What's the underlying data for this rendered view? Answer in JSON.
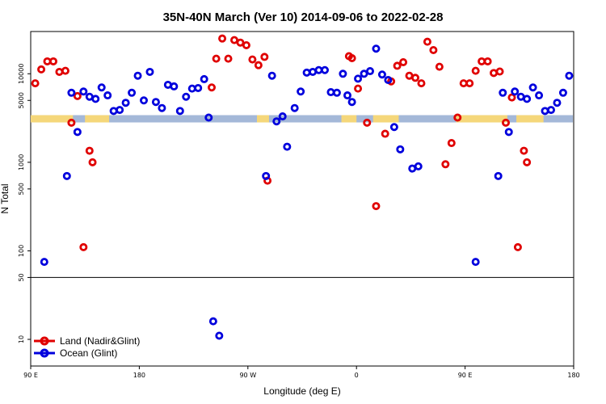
{
  "chart_data": {
    "type": "scatter",
    "title": "35N-40N March (Ver 10)   2014-09-06 to 2022-02-28",
    "xlabel": "Longitude (deg E)",
    "ylabel": "N Total",
    "yscale": "log",
    "ylim": [
      5,
      30000
    ],
    "xlim": [
      0,
      360
    ],
    "x_ticks": [
      {
        "x": 0,
        "label": "90 E"
      },
      {
        "x": 72,
        "label": "180"
      },
      {
        "x": 144,
        "label": "90 W"
      },
      {
        "x": 216,
        "label": "0"
      },
      {
        "x": 288,
        "label": "90 E"
      },
      {
        "x": 360,
        "label": "180"
      }
    ],
    "y_ticks": [
      {
        "v": 10,
        "label": "10"
      },
      {
        "v": 50,
        "label": "50"
      },
      {
        "v": 100,
        "label": "100"
      },
      {
        "v": 500,
        "label": "500"
      },
      {
        "v": 1000,
        "label": "1000"
      },
      {
        "v": 5000,
        "label": "5000"
      },
      {
        "v": 10000,
        "label": "10000"
      }
    ],
    "split_line": 50,
    "legend_position": "bottom-left",
    "colors": {
      "land": "#e00000",
      "ocean": "#0000dd",
      "map_land": "#f5d77a",
      "map_ocean": "#a4b8d8"
    },
    "series": [
      {
        "name": "Land (Nadir&Glint)",
        "color": "#e00000",
        "points": [
          [
            3,
            7800
          ],
          [
            7,
            11200
          ],
          [
            11,
            13800
          ],
          [
            15,
            13800
          ],
          [
            19,
            10500
          ],
          [
            23,
            10800
          ],
          [
            27,
            2800
          ],
          [
            31,
            5600
          ],
          [
            35,
            110
          ],
          [
            39,
            1350
          ],
          [
            41,
            1000
          ],
          [
            120,
            7000
          ],
          [
            123,
            14800
          ],
          [
            127,
            25000
          ],
          [
            131,
            14800
          ],
          [
            135,
            24000
          ],
          [
            139,
            22500
          ],
          [
            143,
            21000
          ],
          [
            147,
            14500
          ],
          [
            151,
            12500
          ],
          [
            155,
            15500
          ],
          [
            157,
            620
          ],
          [
            211,
            15800
          ],
          [
            213,
            15000
          ],
          [
            217,
            6800
          ],
          [
            223,
            2800
          ],
          [
            229,
            320
          ],
          [
            235,
            2100
          ],
          [
            239,
            8200
          ],
          [
            243,
            12300
          ],
          [
            247,
            13500
          ],
          [
            251,
            9500
          ],
          [
            255,
            9000
          ],
          [
            259,
            7800
          ],
          [
            263,
            23000
          ],
          [
            267,
            18500
          ],
          [
            271,
            12000
          ],
          [
            275,
            950
          ],
          [
            279,
            1650
          ],
          [
            283,
            3200
          ],
          [
            287,
            7800
          ],
          [
            291,
            7800
          ],
          [
            295,
            10800
          ],
          [
            299,
            13800
          ],
          [
            303,
            13800
          ],
          [
            307,
            10200
          ],
          [
            311,
            10600
          ],
          [
            315,
            2800
          ],
          [
            319,
            5400
          ],
          [
            323,
            110
          ],
          [
            327,
            1350
          ],
          [
            329,
            1000
          ]
        ]
      },
      {
        "name": "Ocean (Glint)",
        "color": "#0000dd",
        "points": [
          [
            9,
            75
          ],
          [
            24,
            700
          ],
          [
            27,
            6100
          ],
          [
            31,
            2200
          ],
          [
            35,
            6300
          ],
          [
            39,
            5500
          ],
          [
            43,
            5200
          ],
          [
            47,
            7000
          ],
          [
            51,
            5700
          ],
          [
            55,
            3800
          ],
          [
            59,
            3900
          ],
          [
            63,
            4700
          ],
          [
            67,
            6100
          ],
          [
            71,
            9500
          ],
          [
            75,
            5000
          ],
          [
            79,
            10500
          ],
          [
            83,
            4800
          ],
          [
            87,
            4100
          ],
          [
            91,
            7500
          ],
          [
            95,
            7200
          ],
          [
            99,
            3800
          ],
          [
            103,
            5500
          ],
          [
            107,
            6800
          ],
          [
            111,
            6900
          ],
          [
            115,
            8700
          ],
          [
            118,
            3200
          ],
          [
            121,
            16
          ],
          [
            125,
            11
          ],
          [
            156,
            700
          ],
          [
            160,
            9500
          ],
          [
            163,
            2900
          ],
          [
            167,
            3300
          ],
          [
            170,
            1500
          ],
          [
            175,
            4100
          ],
          [
            179,
            6300
          ],
          [
            183,
            10300
          ],
          [
            187,
            10500
          ],
          [
            191,
            11000
          ],
          [
            195,
            11000
          ],
          [
            199,
            6200
          ],
          [
            203,
            6100
          ],
          [
            207,
            10000
          ],
          [
            210,
            5700
          ],
          [
            213,
            4800
          ],
          [
            217,
            8800
          ],
          [
            221,
            10000
          ],
          [
            225,
            10700
          ],
          [
            229,
            19200
          ],
          [
            233,
            9800
          ],
          [
            237,
            8500
          ],
          [
            241,
            2500
          ],
          [
            245,
            1400
          ],
          [
            253,
            850
          ],
          [
            257,
            900
          ],
          [
            295,
            75
          ],
          [
            310,
            700
          ],
          [
            313,
            6100
          ],
          [
            317,
            2200
          ],
          [
            321,
            6300
          ],
          [
            325,
            5500
          ],
          [
            329,
            5200
          ],
          [
            333,
            7000
          ],
          [
            337,
            5700
          ],
          [
            341,
            3800
          ],
          [
            345,
            3900
          ],
          [
            349,
            4700
          ],
          [
            353,
            6100
          ],
          [
            357,
            9500
          ]
        ]
      }
    ]
  }
}
